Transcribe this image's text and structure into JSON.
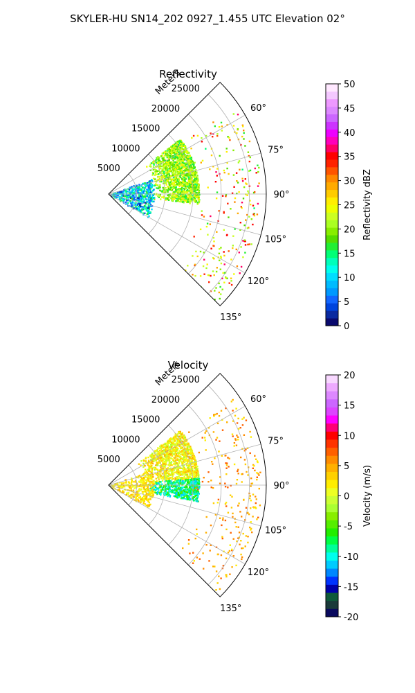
{
  "suptitle": "SKYLER-HU  SN14_202  0927_1.455 UTC Elevation 02°",
  "chart_data": [
    {
      "type": "heatmap",
      "subtype": "polar-sector-ppi",
      "title": "Reflectivity",
      "radial_label": "Meters",
      "radial_ticks": [
        "5000",
        "10000",
        "15000",
        "20000",
        "25000"
      ],
      "radial_tick_values": [
        5000,
        10000,
        15000,
        20000,
        25000
      ],
      "rlim": [
        0,
        28000
      ],
      "theta_ticks": [
        "60°",
        "75°",
        "90°",
        "105°",
        "120°",
        "135°"
      ],
      "theta_tick_values": [
        60,
        75,
        90,
        105,
        120,
        135
      ],
      "theta_range": [
        45,
        135
      ],
      "grid": true,
      "colorbar": {
        "label": "Reflectivity dBZ",
        "ticks": [
          "0",
          "5",
          "10",
          "15",
          "20",
          "25",
          "30",
          "35",
          "40",
          "45",
          "50"
        ],
        "range": [
          0,
          50
        ],
        "colors": [
          "#0a0a6e",
          "#0a2aa0",
          "#0044dd",
          "#1166ff",
          "#0099ff",
          "#00bbff",
          "#00ddff",
          "#00ffee",
          "#00ffbb",
          "#00ff77",
          "#22ee33",
          "#55dd00",
          "#88ee00",
          "#aaff22",
          "#ccff22",
          "#eeff00",
          "#ffee00",
          "#ffcc00",
          "#ffaa00",
          "#ff8800",
          "#ff5500",
          "#ff2200",
          "#ff0000",
          "#ff0066",
          "#ff00bb",
          "#ee00ff",
          "#cc33ff",
          "#cc66ff",
          "#dd88ff",
          "#ee99ff",
          "#f4c8ff",
          "#ffe8ff"
        ]
      }
    },
    {
      "type": "heatmap",
      "subtype": "polar-sector-ppi",
      "title": "Velocity",
      "radial_label": "Meters",
      "radial_ticks": [
        "5000",
        "10000",
        "15000",
        "20000",
        "25000"
      ],
      "radial_tick_values": [
        5000,
        10000,
        15000,
        20000,
        25000
      ],
      "rlim": [
        0,
        28000
      ],
      "theta_ticks": [
        "60°",
        "75°",
        "90°",
        "105°",
        "120°",
        "135°"
      ],
      "theta_tick_values": [
        60,
        75,
        90,
        105,
        120,
        135
      ],
      "theta_range": [
        45,
        135
      ],
      "grid": true,
      "colorbar": {
        "label": "Velocity (m/s)",
        "ticks": [
          "-20",
          "-15",
          "-10",
          "-5",
          "0",
          "5",
          "10",
          "15",
          "20"
        ],
        "range": [
          -20,
          20
        ],
        "colors": [
          "#0a0a5e",
          "#1a3a3a",
          "#0f5a3a",
          "#0000aa",
          "#0033ff",
          "#0088ff",
          "#00ccff",
          "#00ffee",
          "#00ff99",
          "#00ff44",
          "#22ee00",
          "#55ee00",
          "#88ee00",
          "#aaff33",
          "#ccff33",
          "#eeff22",
          "#ffee00",
          "#ffd000",
          "#ffb000",
          "#ff8c00",
          "#ff6000",
          "#ff3300",
          "#ff0000",
          "#ff0077",
          "#ff00ff",
          "#dd44ff",
          "#cc66ff",
          "#dd88ff",
          "#eeaaff",
          "#f8d8ff"
        ]
      }
    }
  ]
}
